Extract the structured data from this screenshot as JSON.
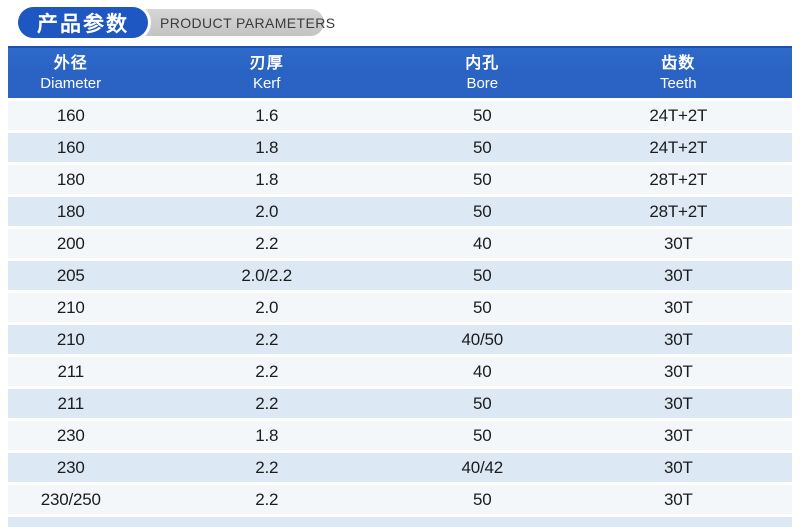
{
  "title": {
    "zh": "产品参数",
    "en": "PRODUCT PARAMETERS"
  },
  "colors": {
    "primary_blue": "#2a63c4",
    "primary_blue_dark": "#1d4fb3",
    "pill_blue": "#1e57c2",
    "pill_gray": "#c9c9c9",
    "pill_gray_text": "#3b3b3b",
    "row_light": "#f4f7fa",
    "row_blue": "#dce8f3",
    "text_dark": "#1c1c1c"
  },
  "table": {
    "column_keys": [
      "diameter",
      "kerf",
      "bore",
      "teeth"
    ],
    "columns": [
      {
        "zh": "外径",
        "en": "Diameter"
      },
      {
        "zh": "刃厚",
        "en": "Kerf"
      },
      {
        "zh": "内孔",
        "en": "Bore"
      },
      {
        "zh": "齿数",
        "en": "Teeth"
      }
    ],
    "rows": [
      [
        "160",
        "1.6",
        "50",
        "24T+2T"
      ],
      [
        "160",
        "1.8",
        "50",
        "24T+2T"
      ],
      [
        "180",
        "1.8",
        "50",
        "28T+2T"
      ],
      [
        "180",
        "2.0",
        "50",
        "28T+2T"
      ],
      [
        "200",
        "2.2",
        "40",
        "30T"
      ],
      [
        "205",
        "2.0/2.2",
        "50",
        "30T"
      ],
      [
        "210",
        "2.0",
        "50",
        "30T"
      ],
      [
        "210",
        "2.2",
        "40/50",
        "30T"
      ],
      [
        "211",
        "2.2",
        "40",
        "30T"
      ],
      [
        "211",
        "2.2",
        "50",
        "30T"
      ],
      [
        "230",
        "1.8",
        "50",
        "30T"
      ],
      [
        "230",
        "2.2",
        "40/42",
        "30T"
      ],
      [
        "230/250",
        "2.2",
        "50",
        "30T"
      ]
    ]
  }
}
